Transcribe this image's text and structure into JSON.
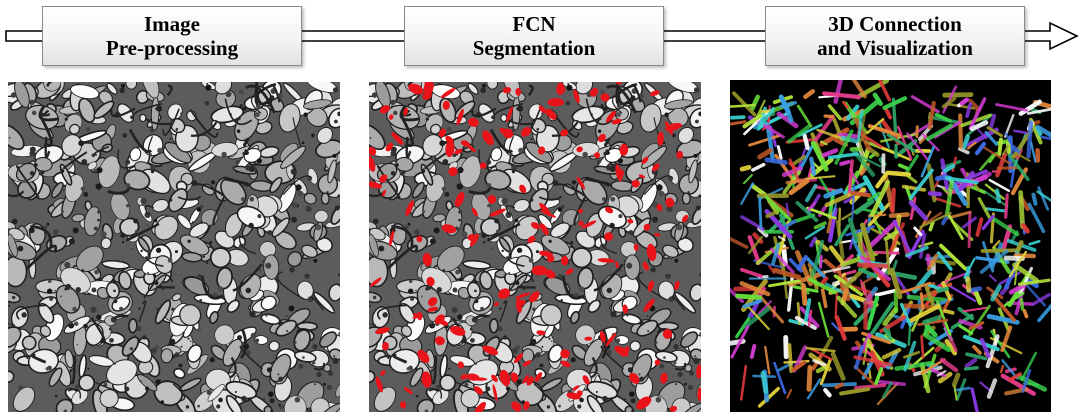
{
  "pipeline": {
    "stages": [
      {
        "line1": "Image",
        "line2": "Pre-processing"
      },
      {
        "line1": "FCN",
        "line2": "Segmentation"
      },
      {
        "line1": "3D Connection",
        "line2": "and Visualization"
      }
    ]
  },
  "panels": {
    "em_image": {
      "description_icon": "electron-microscopy-image"
    },
    "segmentation": {
      "description_icon": "segmentation-overlay-image",
      "overlay_color": "#e8141a"
    },
    "reconstruction": {
      "description_icon": "3d-reconstruction-render",
      "background": "#000000"
    }
  }
}
